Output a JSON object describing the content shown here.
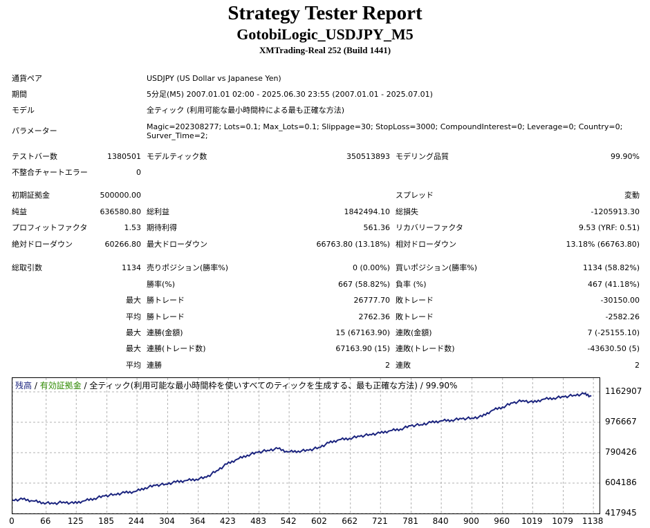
{
  "header": {
    "title": "Strategy Tester Report",
    "subtitle": "GotobiLogic_USDJPY_M5",
    "server": "XMTrading-Real 252 (Build 1441)"
  },
  "info": {
    "symbol_label": "通貨ペア",
    "symbol_value": "USDJPY (US Dollar vs Japanese Yen)",
    "period_label": "期間",
    "period_value": "5分足(M5) 2007.01.01 02:00 - 2025.06.30 23:55 (2007.01.01 - 2025.07.01)",
    "model_label": "モデル",
    "model_value": "全ティック (利用可能な最小時間枠による最も正確な方法)",
    "params_label": "パラメーター",
    "params_line1": "Magic=202308277; Lots=0.1; Max_Lots=0.1; Slippage=30; StopLoss=3000; CompoundInterest=0; Leverage=0; Country=0;",
    "params_line2": "Surver_Time=2;"
  },
  "stats": {
    "bars_label": "テストバー数",
    "bars_value": "1380501",
    "ticks_label": "モデルティック数",
    "ticks_value": "350513893",
    "quality_label": "モデリング品質",
    "quality_value": "99.90%",
    "mismatch_label": "不整合チャートエラー",
    "mismatch_value": "0",
    "deposit_label": "初期証拠金",
    "deposit_value": "500000.00",
    "spread_label": "スプレッド",
    "spread_value": "変動",
    "net_label": "純益",
    "net_value": "636580.80",
    "gross_profit_label": "総利益",
    "gross_profit_value": "1842494.10",
    "gross_loss_label": "総損失",
    "gross_loss_value": "-1205913.30",
    "pf_label": "プロフィットファクタ",
    "pf_value": "1.53",
    "payoff_label": "期待利得",
    "payoff_value": "561.36",
    "rf_label": "リカバリーファクタ",
    "rf_value": "9.53 (YRF: 0.51)",
    "abs_dd_label": "絶対ドローダウン",
    "abs_dd_value": "60266.80",
    "max_dd_label": "最大ドローダウン",
    "max_dd_value": "66763.80 (13.18%)",
    "rel_dd_label": "相対ドローダウン",
    "rel_dd_value": "13.18% (66763.80)"
  },
  "trades": {
    "total_label": "総取引数",
    "total_value": "1134",
    "short_label": "売りポジション(勝率%)",
    "short_value": "0 (0.00%)",
    "long_label": "買いポジション(勝率%)",
    "long_value": "1134 (58.82%)",
    "winrate_label": "勝率(%)",
    "winrate_value": "667 (58.82%)",
    "lossrate_label": "負率 (%)",
    "lossrate_value": "467 (41.18%)",
    "max_prefix": "最大",
    "avg_prefix": "平均",
    "largest_win_label": "勝トレード",
    "largest_win_value": "26777.70",
    "largest_loss_label": "敗トレード",
    "largest_loss_value": "-30150.00",
    "avg_win_label": "勝トレード",
    "avg_win_value": "2762.36",
    "avg_loss_label": "敗トレード",
    "avg_loss_value": "-2582.26",
    "max_consec_wins_label": "連勝(金額)",
    "max_consec_wins_value": "15 (67163.90)",
    "max_consec_losses_label": "連敗(金額)",
    "max_consec_losses_value": "7 (-25155.10)",
    "max_consec_profit_label": "連勝(トレード数)",
    "max_consec_profit_value": "67163.90 (15)",
    "max_consec_loss_label": "連敗(トレード数)",
    "max_consec_loss_value": "-43630.50 (5)",
    "avg_consec_wins_label": "連勝",
    "avg_consec_wins_value": "2",
    "avg_consec_losses_label": "連敗",
    "avg_consec_losses_value": "2"
  },
  "chart_legend": {
    "balance": "残高",
    "sep1": " / ",
    "equity": "有効証拠金",
    "sep2": " / ",
    "rest": "全ティック(利用可能な最小時間枠を使いすべてのティックを生成する、最も正確な方法) / 99.90%"
  },
  "colors": {
    "balance_line": "#1a237e",
    "equity_label": "#2e8b00",
    "balance_label": "#1a237e",
    "grid": "#b0b0b0"
  },
  "chart_data": {
    "type": "line",
    "x_ticks": [
      "0",
      "66",
      "125",
      "185",
      "244",
      "304",
      "364",
      "423",
      "483",
      "542",
      "602",
      "662",
      "721",
      "781",
      "840",
      "900",
      "960",
      "1019",
      "1079",
      "1138"
    ],
    "y_ticks": [
      "1162907",
      "976667",
      "790426",
      "604186",
      "417945"
    ],
    "xlim": [
      0,
      1150
    ],
    "ylim": [
      417945,
      1162907
    ],
    "series": [
      {
        "x": [
          0,
          20,
          40,
          60,
          80,
          100,
          120,
          140,
          160,
          180,
          200,
          220,
          240,
          260,
          280,
          300,
          320,
          340,
          360,
          380,
          400,
          420,
          440,
          460,
          480,
          500,
          520,
          540,
          560,
          580,
          600,
          620,
          640,
          660,
          680,
          700,
          720,
          740,
          760,
          780,
          800,
          820,
          840,
          860,
          880,
          900,
          920,
          940,
          960,
          980,
          1000,
          1020,
          1040,
          1060,
          1080,
          1100,
          1120,
          1134
        ],
        "y": [
          500000,
          505000,
          495000,
          485000,
          478000,
          488000,
          480000,
          495000,
          510000,
          525000,
          535000,
          545000,
          552000,
          575000,
          590000,
          598000,
          610000,
          620000,
          628000,
          640000,
          680000,
          720000,
          750000,
          775000,
          792000,
          805000,
          815000,
          795000,
          800000,
          805000,
          822000,
          850000,
          870000,
          878000,
          890000,
          902000,
          910000,
          925000,
          935000,
          955000,
          962000,
          975000,
          985000,
          990000,
          998000,
          1002000,
          1012000,
          1050000,
          1070000,
          1095000,
          1110000,
          1098000,
          1118000,
          1125000,
          1132000,
          1142000,
          1150000,
          1136580
        ]
      }
    ],
    "grid": true
  }
}
